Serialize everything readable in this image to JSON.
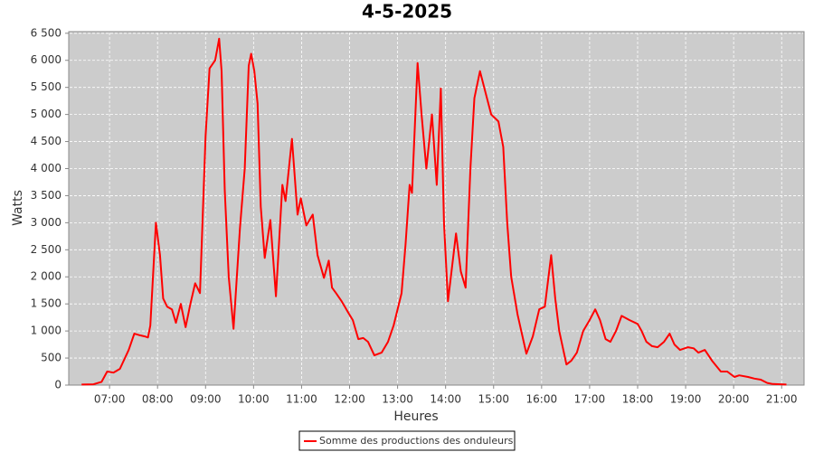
{
  "chart_data": {
    "type": "line",
    "title": "4-5-2025",
    "x_label": "Heures",
    "y_label": "Watts",
    "x": [
      "06:25",
      "06:40",
      "06:50",
      "06:57",
      "07:05",
      "07:13",
      "07:24",
      "07:31",
      "07:38",
      "07:44",
      "07:48",
      "07:51",
      "07:58",
      "08:03",
      "08:07",
      "08:12",
      "08:18",
      "08:23",
      "08:29",
      "08:35",
      "08:41",
      "08:47",
      "08:53",
      "09:00",
      "09:05",
      "09:12",
      "09:17",
      "09:20",
      "09:24",
      "09:29",
      "09:35",
      "09:43",
      "09:49",
      "09:54",
      "09:57",
      "10:01",
      "10:05",
      "10:09",
      "10:14",
      "10:21",
      "10:28",
      "10:36",
      "10:40",
      "10:48",
      "10:55",
      "10:59",
      "11:06",
      "11:14",
      "11:20",
      "11:28",
      "11:34",
      "11:38",
      "11:43",
      "11:50",
      "11:58",
      "12:04",
      "12:11",
      "12:17",
      "12:23",
      "12:31",
      "12:40",
      "12:48",
      "12:55",
      "13:05",
      "13:10",
      "13:15",
      "13:18",
      "13:25",
      "13:30",
      "13:36",
      "13:43",
      "13:49",
      "13:54",
      "13:58",
      "14:03",
      "14:13",
      "14:19",
      "14:25",
      "14:31",
      "14:36",
      "14:43",
      "14:50",
      "14:57",
      "15:06",
      "15:12",
      "15:17",
      "15:22",
      "15:30",
      "15:41",
      "15:49",
      "15:57",
      "16:04",
      "16:12",
      "16:17",
      "16:22",
      "16:31",
      "16:37",
      "16:44",
      "16:52",
      "17:00",
      "17:07",
      "17:13",
      "17:20",
      "17:26",
      "17:33",
      "17:40",
      "17:50",
      "18:00",
      "18:05",
      "18:11",
      "18:18",
      "18:25",
      "18:33",
      "18:40",
      "18:46",
      "18:53",
      "19:03",
      "19:10",
      "19:16",
      "19:24",
      "19:33",
      "19:44",
      "19:52",
      "20:01",
      "20:07",
      "20:18",
      "20:26",
      "20:34",
      "20:42",
      "20:49",
      "21:06"
    ],
    "series": [
      {
        "name": "Somme des productions des onduleurs",
        "color": "#ff0000",
        "values": [
          10,
          15,
          60,
          250,
          230,
          300,
          650,
          950,
          920,
          900,
          880,
          1100,
          3000,
          2400,
          1600,
          1450,
          1400,
          1150,
          1500,
          1070,
          1500,
          1880,
          1700,
          4600,
          5850,
          6000,
          6400,
          5800,
          3600,
          2000,
          1040,
          2900,
          4000,
          5900,
          6120,
          5800,
          5200,
          3300,
          2350,
          3050,
          1640,
          3700,
          3400,
          4550,
          3150,
          3450,
          2950,
          3150,
          2400,
          1980,
          2300,
          1800,
          1700,
          1550,
          1350,
          1200,
          850,
          870,
          800,
          550,
          600,
          800,
          1100,
          1700,
          2600,
          3700,
          3550,
          5950,
          5000,
          4000,
          5000,
          3700,
          5480,
          3000,
          1550,
          2800,
          2100,
          1800,
          4000,
          5300,
          5800,
          5400,
          5000,
          4870,
          4400,
          3000,
          2000,
          1300,
          580,
          900,
          1400,
          1450,
          2400,
          1600,
          1000,
          380,
          450,
          600,
          1000,
          1200,
          1400,
          1200,
          850,
          800,
          1000,
          1280,
          1200,
          1130,
          1000,
          800,
          720,
          700,
          800,
          950,
          750,
          650,
          700,
          680,
          600,
          650,
          450,
          250,
          250,
          150,
          180,
          150,
          120,
          100,
          40,
          20,
          10
        ]
      }
    ],
    "xlim": [
      "06:09",
      "21:28"
    ],
    "xticks": [
      "07:00",
      "08:00",
      "09:00",
      "10:00",
      "11:00",
      "12:00",
      "13:00",
      "14:00",
      "15:00",
      "16:00",
      "17:00",
      "18:00",
      "19:00",
      "20:00",
      "21:00"
    ],
    "ylim": [
      0,
      6530
    ],
    "yticks": [
      0,
      500,
      {
        "value": 1000,
        "label": "1 000"
      },
      {
        "value": 1500,
        "label": "1 500"
      },
      {
        "value": 2000,
        "label": "2 000"
      },
      {
        "value": 2500,
        "label": "2 500"
      },
      {
        "value": 3000,
        "label": "3 000"
      },
      {
        "value": 3500,
        "label": "3 500"
      },
      {
        "value": 4000,
        "label": "4 000"
      },
      {
        "value": 4500,
        "label": "4 500"
      },
      {
        "value": 5000,
        "label": "5 000"
      },
      {
        "value": 5500,
        "label": "5 500"
      },
      {
        "value": 6000,
        "label": "6 000"
      },
      {
        "value": 6500,
        "label": "6 500"
      }
    ],
    "grid": true,
    "legend": "bottom"
  }
}
